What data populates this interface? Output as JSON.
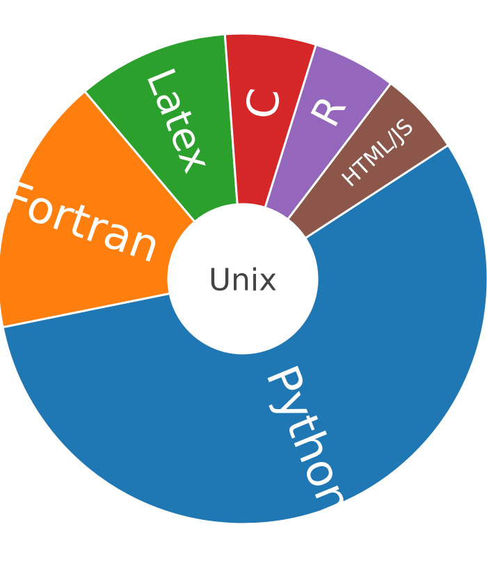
{
  "chart_data": {
    "type": "pie",
    "center_label": "Unix",
    "slices": [
      {
        "label": "Python",
        "value": 56.0,
        "color": "#1f77b4",
        "label_color": "#ffffff"
      },
      {
        "label": "Fortran",
        "value": 17.0,
        "color": "#ff7f0e",
        "label_color": "#ffffff"
      },
      {
        "label": "Latex",
        "value": 10.0,
        "color": "#2ca02c",
        "label_color": "#ffffff"
      },
      {
        "label": "C",
        "value": 6.0,
        "color": "#d62728",
        "label_color": "#ffffff"
      },
      {
        "label": "R",
        "value": 5.5,
        "color": "#9467bd",
        "label_color": "#ffffff"
      },
      {
        "label": "HTML/JS",
        "value": 5.5,
        "color": "#8c564b",
        "label_color": "#ffffff"
      }
    ],
    "center_color": "#ffffff",
    "center_text_color": "#444444"
  }
}
